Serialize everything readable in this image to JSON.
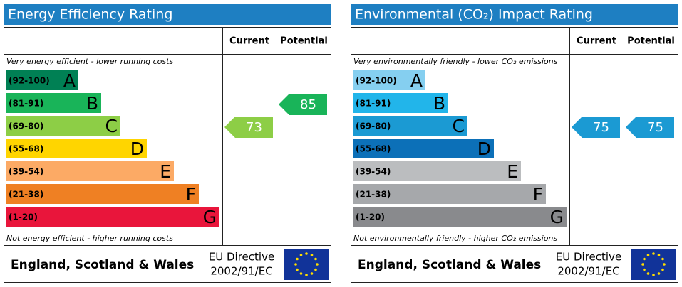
{
  "panels": [
    {
      "title": "Energy Efficiency Rating",
      "headers": [
        "Current",
        "Potential"
      ],
      "top_note": "Very energy efficient - lower running costs",
      "bottom_note": "Not energy efficient - higher running costs",
      "bands": [
        {
          "range": "(92-100)",
          "letter": "A",
          "color": "#008054"
        },
        {
          "range": "(81-91)",
          "letter": "B",
          "color": "#19b459"
        },
        {
          "range": "(69-80)",
          "letter": "C",
          "color": "#8dce46"
        },
        {
          "range": "(55-68)",
          "letter": "D",
          "color": "#ffd500"
        },
        {
          "range": "(39-54)",
          "letter": "E",
          "color": "#fcaa65"
        },
        {
          "range": "(21-38)",
          "letter": "F",
          "color": "#ef8023"
        },
        {
          "range": "(1-20)",
          "letter": "G",
          "color": "#e9153b"
        }
      ],
      "current": 73,
      "potential": 85,
      "footer": {
        "region": "England, Scotland & Wales",
        "directive": [
          "EU Directive",
          "2002/91/EC"
        ]
      }
    },
    {
      "title": "Environmental (CO₂) Impact Rating",
      "headers": [
        "Current",
        "Potential"
      ],
      "top_note": "Very environmentally friendly - lower CO₂ emissions",
      "bottom_note": "Not environmentally friendly - higher CO₂ emissions",
      "bands": [
        {
          "range": "(92-100)",
          "letter": "A",
          "color": "#85cff0"
        },
        {
          "range": "(81-91)",
          "letter": "B",
          "color": "#22b5ea"
        },
        {
          "range": "(69-80)",
          "letter": "C",
          "color": "#1b9ad3"
        },
        {
          "range": "(55-68)",
          "letter": "D",
          "color": "#0c70b8"
        },
        {
          "range": "(39-54)",
          "letter": "E",
          "color": "#bbbdbf"
        },
        {
          "range": "(21-38)",
          "letter": "F",
          "color": "#a6a8ab"
        },
        {
          "range": "(1-20)",
          "letter": "G",
          "color": "#898a8d"
        }
      ],
      "current": 75,
      "potential": 75,
      "footer": {
        "region": "England, Scotland & Wales",
        "directive": [
          "EU Directive",
          "2002/91/EC"
        ]
      }
    }
  ]
}
